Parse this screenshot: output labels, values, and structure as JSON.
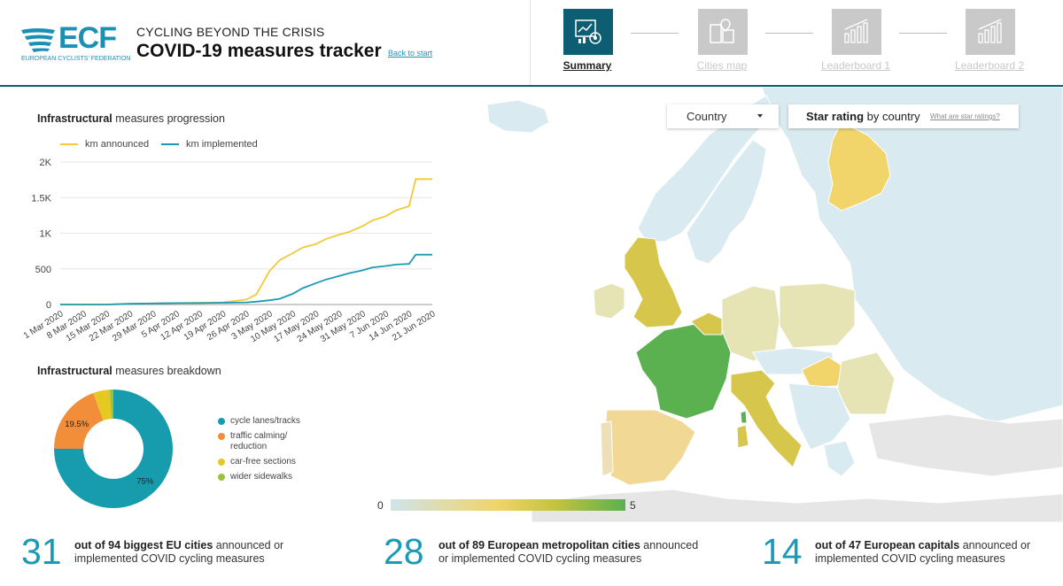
{
  "brand": {
    "logo_text": "ECF",
    "logo_subtitle": "EUROPEAN CYCLISTS' FEDERATION",
    "accent": "#1b8fb4",
    "dark_teal": "#0e5e73"
  },
  "header": {
    "kicker": "CYCLING BEYOND THE CRISIS",
    "title": "COVID-19 measures tracker",
    "back_link": "Back to start"
  },
  "nav": [
    {
      "label": "Summary",
      "icon": "dashboard-icon",
      "active": true
    },
    {
      "label": "Cities map",
      "icon": "city-map-icon",
      "active": false
    },
    {
      "label": "Leaderboard 1",
      "icon": "bar-chart-icon",
      "active": false
    },
    {
      "label": "Leaderboard 2",
      "icon": "bar-chart-icon",
      "active": false
    }
  ],
  "map_controls": {
    "select_value": "Country",
    "star_title_bold": "Star rating",
    "star_title_rest": " by country",
    "star_link": "What are star ratings?",
    "legend_min": "0",
    "legend_max": "5",
    "legend_colors": [
      "#cfe4ea",
      "#f1d46a",
      "#c4c33e",
      "#5bb04f"
    ]
  },
  "line_chart": {
    "title_bold": "Infrastructural",
    "title_rest": " measures progression",
    "legend": [
      {
        "name": "km announced",
        "color": "#f1c93b"
      },
      {
        "name": "km implemented",
        "color": "#1b9ab8"
      }
    ]
  },
  "donut_chart": {
    "title_bold": "Infrastructural",
    "title_rest": " measures breakdown",
    "legend": [
      {
        "name": "cycle lanes/tracks",
        "color": "#169cad"
      },
      {
        "name": "traffic calming/ reduction",
        "color": "#f28e3a"
      },
      {
        "name": "car-free sections",
        "color": "#e6c823"
      },
      {
        "name": "wider sidewalks",
        "color": "#9ac33c"
      }
    ]
  },
  "chart_data": [
    {
      "type": "line",
      "title": "Infrastructural measures progression",
      "xlabel": "",
      "ylabel": "",
      "ylim": [
        0,
        2000
      ],
      "yticks": [
        "0",
        "500",
        "1K",
        "1.5K",
        "2K"
      ],
      "x_ticks": [
        "1 Mar 2020",
        "8 Mar 2020",
        "15 Mar 2020",
        "22 Mar 2020",
        "29 Mar 2020",
        "5 Apr 2020",
        "12 Apr 2020",
        "19 Apr 2020",
        "26 Apr 2020",
        "3 May 2020",
        "10 May 2020",
        "17 May 2020",
        "24 May 2020",
        "31 May 2020",
        "7 Jun 2020",
        "14 Jun 2020",
        "21 Jun 2020"
      ],
      "x": [
        "1 Mar 2020",
        "8 Mar 2020",
        "15 Mar 2020",
        "22 Mar 2020",
        "29 Mar 2020",
        "5 Apr 2020",
        "12 Apr 2020",
        "19 Apr 2020",
        "26 Apr 2020",
        "29 Apr 2020",
        "3 May 2020",
        "6 May 2020",
        "10 May 2020",
        "13 May 2020",
        "17 May 2020",
        "20 May 2020",
        "24 May 2020",
        "27 May 2020",
        "31 May 2020",
        "3 Jun 2020",
        "7 Jun 2020",
        "10 Jun 2020",
        "14 Jun 2020",
        "16 Jun 2020",
        "21 Jun 2020"
      ],
      "series": [
        {
          "name": "km announced",
          "values": [
            0,
            0,
            0,
            10,
            15,
            20,
            25,
            30,
            70,
            140,
            470,
            620,
            720,
            800,
            850,
            920,
            980,
            1020,
            1100,
            1180,
            1240,
            1320,
            1380,
            1760,
            1760
          ]
        },
        {
          "name": "km implemented",
          "values": [
            0,
            0,
            0,
            10,
            15,
            20,
            20,
            25,
            30,
            40,
            60,
            80,
            150,
            230,
            300,
            350,
            400,
            440,
            480,
            520,
            540,
            560,
            570,
            700,
            700
          ]
        }
      ]
    },
    {
      "type": "pie",
      "title": "Infrastructural measures breakdown",
      "categories": [
        "cycle lanes/tracks",
        "traffic calming/ reduction",
        "car-free sections",
        "wider sidewalks"
      ],
      "values": [
        75,
        19.5,
        4.5,
        1
      ],
      "data_labels": [
        "75%",
        "19.5%",
        "",
        ""
      ]
    }
  ],
  "stats": [
    {
      "number": "31",
      "bold": "out of 94 biggest EU cities",
      "rest": " announced or implemented COVID cycling measures"
    },
    {
      "number": "28",
      "bold": "out of 89 European metropolitan cities",
      "rest": " announced or implemented COVID cycling measures"
    },
    {
      "number": "14",
      "bold": "out of 47 European capitals",
      "rest": " announced or implemented COVID cycling measures"
    }
  ]
}
